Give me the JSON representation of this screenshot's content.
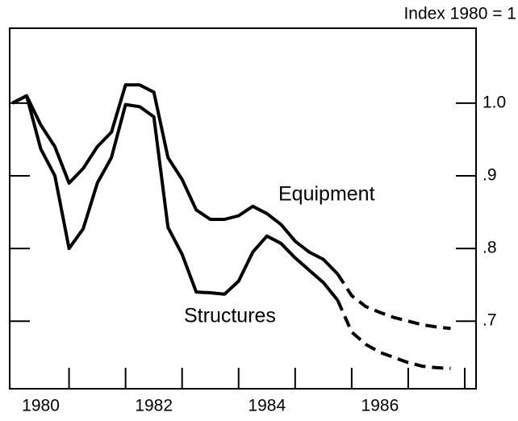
{
  "chart_data": {
    "type": "line",
    "axis_note": "Index 1980 = 1",
    "x": [
      1980,
      1980.25,
      1980.5,
      1980.75,
      1981,
      1981.25,
      1981.5,
      1981.75,
      1982,
      1982.25,
      1982.5,
      1982.75,
      1983,
      1983.25,
      1983.5,
      1983.75,
      1984,
      1984.25,
      1984.5,
      1984.75,
      1985,
      1985.25,
      1985.5,
      1985.75,
      1986,
      1986.25,
      1986.5,
      1986.75,
      1987,
      1987.25,
      1987.5,
      1987.75
    ],
    "series": [
      {
        "name": "Equipment",
        "color": "#000000",
        "values": [
          1.0,
          1.01,
          0.97,
          0.94,
          0.89,
          0.91,
          0.94,
          0.96,
          1.025,
          1.025,
          1.015,
          0.925,
          0.895,
          0.853,
          0.84,
          0.84,
          0.845,
          0.858,
          0.848,
          0.833,
          0.81,
          0.795,
          0.785,
          0.765,
          0.735,
          0.72,
          0.712,
          0.705,
          0.7,
          0.695,
          0.692,
          0.69
        ]
      },
      {
        "name": "Structures",
        "color": "#000000",
        "values": [
          1.0,
          1.01,
          0.937,
          0.9,
          0.8,
          0.827,
          0.89,
          0.925,
          0.998,
          0.995,
          0.981,
          0.829,
          0.792,
          0.74,
          0.739,
          0.737,
          0.755,
          0.795,
          0.817,
          0.807,
          0.787,
          0.77,
          0.753,
          0.729,
          0.685,
          0.668,
          0.657,
          0.65,
          0.643,
          0.638,
          0.636,
          0.635
        ]
      }
    ],
    "projection_start": 1985.75,
    "xlim": [
      1979.95,
      1988.2
    ],
    "xticks": [
      {
        "value": 1980.5,
        "label": "1980"
      },
      {
        "value": 1982.5,
        "label": "1982"
      },
      {
        "value": 1984.5,
        "label": "1984"
      },
      {
        "value": 1986.5,
        "label": "1986"
      }
    ],
    "xminor": [
      1981,
      1982,
      1983,
      1984,
      1985,
      1986,
      1987,
      1988
    ],
    "ylim": [
      0.607,
      1.103
    ],
    "yticks": [
      {
        "value": 0.7,
        "label": ".7"
      },
      {
        "value": 0.8,
        "label": ".8"
      },
      {
        "value": 0.9,
        "label": ".9"
      },
      {
        "value": 1.0,
        "label": "1.0"
      }
    ]
  }
}
